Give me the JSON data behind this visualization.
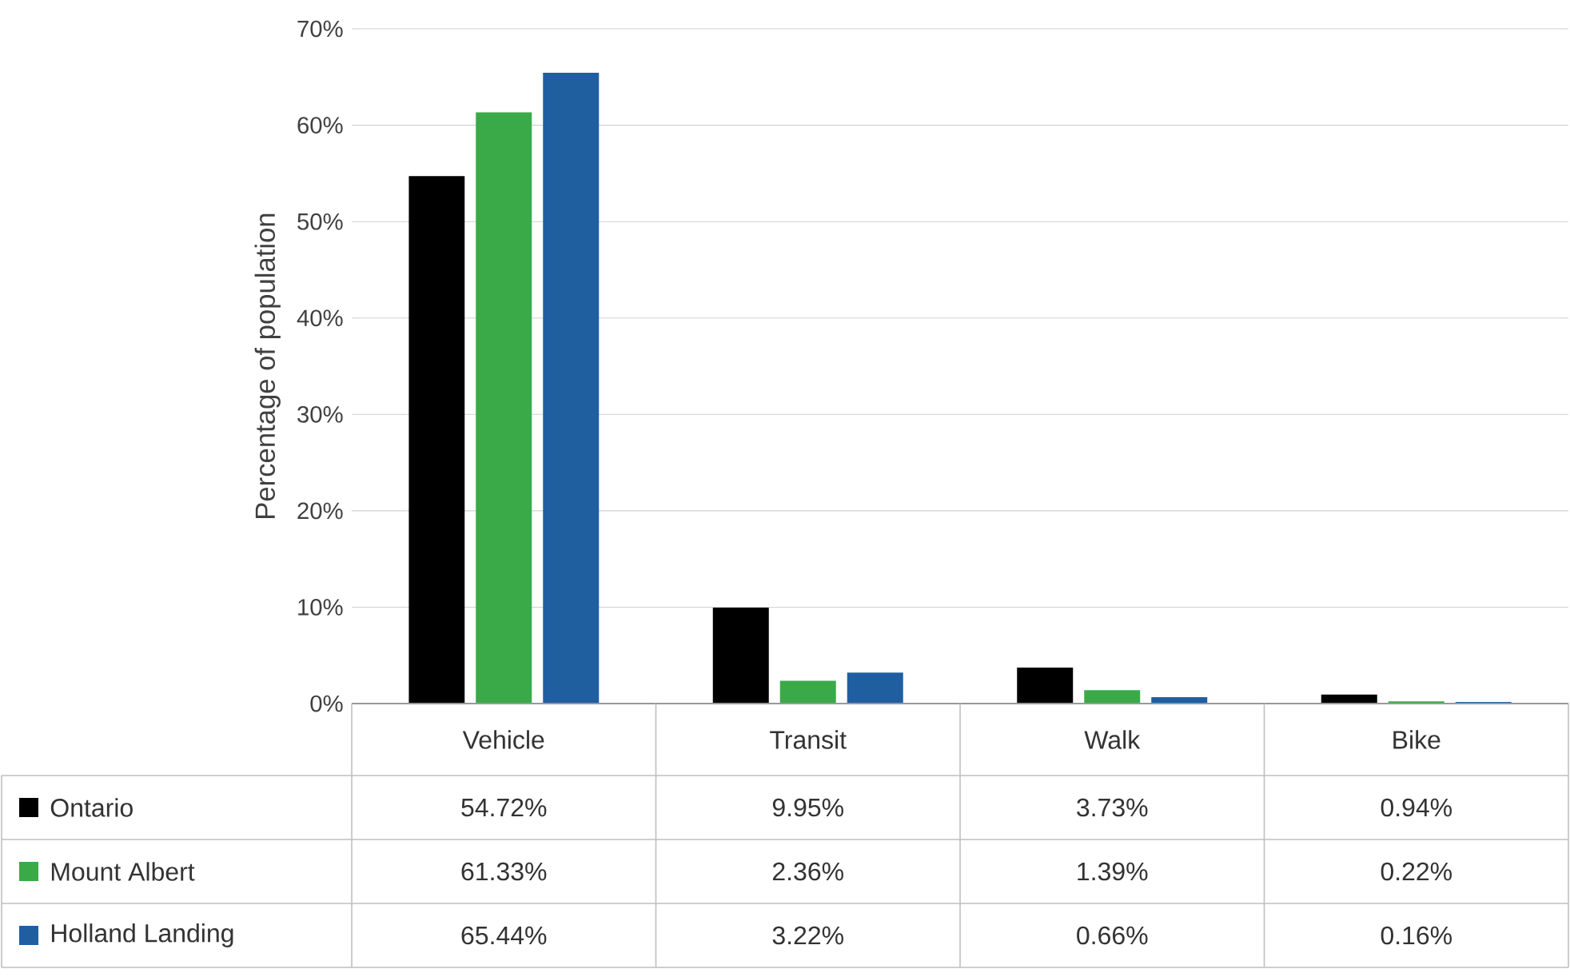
{
  "chart_data": {
    "type": "bar",
    "ylabel": "Percentage of population",
    "categories": [
      "Vehicle",
      "Transit",
      "Walk",
      "Bike"
    ],
    "series": [
      {
        "name": "Ontario",
        "color": "#000000",
        "values": [
          54.72,
          9.95,
          3.73,
          0.94
        ],
        "value_labels": [
          "54.72%",
          "9.95%",
          "3.73%",
          "0.94%"
        ]
      },
      {
        "name": "Mount Albert",
        "color": "#3aaa49",
        "values": [
          61.33,
          2.36,
          1.39,
          0.22
        ],
        "value_labels": [
          "61.33%",
          "2.36%",
          "1.39%",
          "0.22%"
        ]
      },
      {
        "name": "Holland Landing",
        "color": "#1f5fa0",
        "values": [
          65.44,
          3.22,
          0.66,
          0.16
        ],
        "value_labels": [
          "65.44%",
          "3.22%",
          "0.66%",
          "0.16%"
        ]
      }
    ],
    "ylim": [
      0,
      70
    ],
    "yticks": [
      {
        "value": 0,
        "label": "0%"
      },
      {
        "value": 10,
        "label": "10%"
      },
      {
        "value": 20,
        "label": "20%"
      },
      {
        "value": 30,
        "label": "30%"
      },
      {
        "value": 40,
        "label": "40%"
      },
      {
        "value": 50,
        "label": "50%"
      },
      {
        "value": 60,
        "label": "60%"
      },
      {
        "value": 70,
        "label": "70%"
      }
    ],
    "grid": "y",
    "legend": "bottom left"
  }
}
